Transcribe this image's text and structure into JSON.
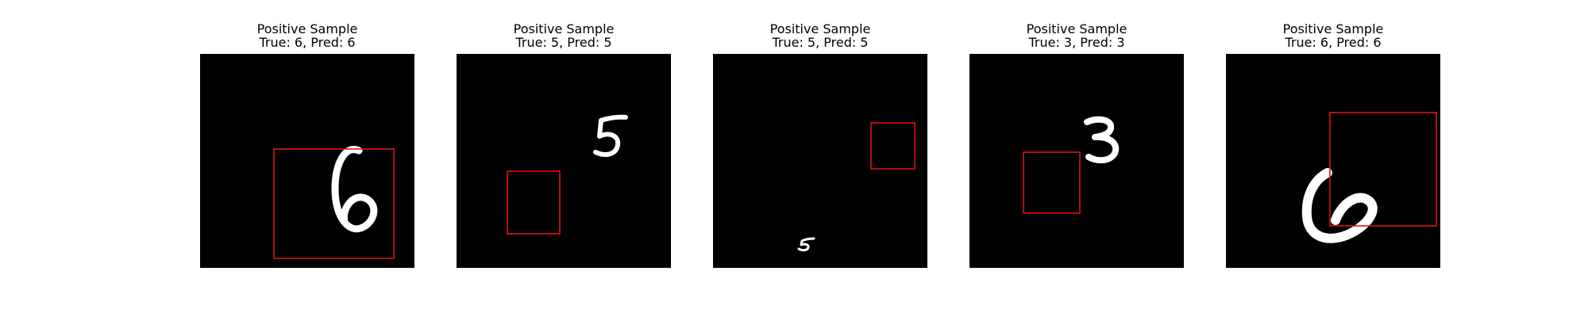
{
  "figure": {
    "colors": {
      "background": "#ffffff",
      "image_background": "#000000",
      "digit": "#ffffff",
      "bounding_box": "#dd1111"
    },
    "panels": [
      {
        "title": "Positive Sample",
        "subtitle": "True: 6, Pred: 6",
        "digit_shape": "digit-6"
      },
      {
        "title": "Positive Sample",
        "subtitle": "True: 5, Pred: 5",
        "digit_shape": "digit-5"
      },
      {
        "title": "Positive Sample",
        "subtitle": "True: 5, Pred: 5",
        "digit_shape": "digit-5-small"
      },
      {
        "title": "Positive Sample",
        "subtitle": "True: 3, Pred: 3",
        "digit_shape": "digit-3"
      },
      {
        "title": "Positive Sample",
        "subtitle": "True: 6, Pred: 6",
        "digit_shape": "digit-6-tilted"
      }
    ]
  }
}
